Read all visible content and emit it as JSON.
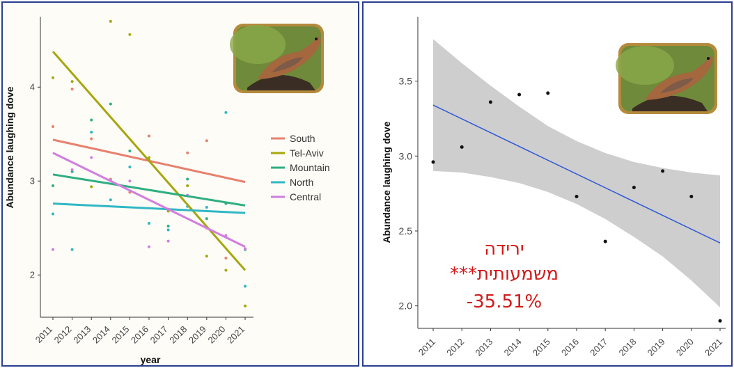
{
  "chart_data": [
    {
      "type": "scatter",
      "xlabel": "year",
      "ylabel": "Abundance laughing dove",
      "x": [
        2011,
        2012,
        2013,
        2014,
        2015,
        2016,
        2017,
        2018,
        2019,
        2020,
        2021
      ],
      "xlim": [
        2011,
        2021
      ],
      "ylim": [
        1.55,
        4.75
      ],
      "yticks": [
        2,
        3,
        4
      ],
      "grid": false,
      "legend": "right",
      "series": [
        {
          "name": "South",
          "color": "#e8806f",
          "trend": [
            3.44,
            2.99
          ],
          "points": [
            [
              2011,
              3.58
            ],
            [
              2012,
              3.98
            ],
            [
              2013,
              3.45
            ],
            [
              2014,
              3.02
            ],
            [
              2015,
              2.88
            ],
            [
              2016,
              3.48
            ],
            [
              2017,
              2.7
            ],
            [
              2018,
              3.3
            ],
            [
              2019,
              3.43
            ],
            [
              2020,
              2.18
            ],
            [
              2021,
              2.28
            ]
          ]
        },
        {
          "name": "Tel-Aviv",
          "color": "#a6a60e",
          "trend": [
            4.38,
            2.05
          ],
          "points": [
            [
              2011,
              4.1
            ],
            [
              2012,
              4.06
            ],
            [
              2013,
              2.94
            ],
            [
              2014,
              4.7
            ],
            [
              2015,
              4.56
            ],
            [
              2016,
              3.25
            ],
            [
              2017,
              2.68
            ],
            [
              2018,
              2.95
            ],
            [
              2019,
              2.2
            ],
            [
              2020,
              2.05
            ],
            [
              2021,
              1.67
            ]
          ]
        },
        {
          "name": "Mountain",
          "color": "#2fae83",
          "trend": [
            3.07,
            2.74
          ],
          "points": [
            [
              2011,
              2.95
            ],
            [
              2012,
              3.1
            ],
            [
              2013,
              3.65
            ],
            [
              2014,
              3.82
            ],
            [
              2015,
              3.32
            ],
            [
              2016,
              3.22
            ],
            [
              2017,
              2.52
            ],
            [
              2018,
              3.02
            ],
            [
              2019,
              2.6
            ],
            [
              2020,
              2.76
            ],
            [
              2021,
              2.27
            ]
          ]
        },
        {
          "name": "North",
          "color": "#2fb7c4",
          "trend": [
            2.76,
            2.66
          ],
          "points": [
            [
              2011,
              2.65
            ],
            [
              2012,
              2.27
            ],
            [
              2013,
              3.52
            ],
            [
              2014,
              2.8
            ],
            [
              2015,
              3.15
            ],
            [
              2016,
              2.55
            ],
            [
              2017,
              2.48
            ],
            [
              2018,
              2.73
            ],
            [
              2019,
              2.72
            ],
            [
              2020,
              3.73
            ],
            [
              2021,
              1.88
            ]
          ]
        },
        {
          "name": "Central",
          "color": "#d07ee0",
          "trend": [
            3.3,
            2.3
          ],
          "points": [
            [
              2011,
              2.27
            ],
            [
              2012,
              3.12
            ],
            [
              2013,
              3.25
            ],
            [
              2014,
              3.01
            ],
            [
              2015,
              3.0
            ],
            [
              2016,
              2.3
            ],
            [
              2017,
              2.36
            ],
            [
              2018,
              2.85
            ],
            [
              2019,
              2.5
            ],
            [
              2020,
              2.42
            ],
            [
              2021,
              2.28
            ]
          ]
        }
      ]
    },
    {
      "type": "scatter",
      "xlabel": "",
      "ylabel": "Abundance laughing dove",
      "x": [
        2011,
        2012,
        2013,
        2014,
        2015,
        2016,
        2017,
        2018,
        2019,
        2020,
        2021
      ],
      "xlim": [
        2011,
        2021
      ],
      "ylim": [
        1.85,
        3.93
      ],
      "yticks": [
        2.0,
        2.5,
        3.0,
        3.5
      ],
      "ytick_labels": [
        "2.0",
        "2.5",
        "3.0",
        "3.5"
      ],
      "grid": false,
      "points": [
        2.96,
        3.06,
        3.36,
        3.41,
        3.42,
        2.73,
        2.43,
        2.79,
        2.9,
        2.73,
        1.9
      ],
      "trend": {
        "color": "#2f57d6",
        "start": 3.34,
        "end": 2.42
      },
      "confidence_band": {
        "color": "#c9c9c9",
        "upper": [
          3.78,
          3.62,
          3.47,
          3.33,
          3.2,
          3.1,
          3.02,
          2.96,
          2.92,
          2.89,
          2.87
        ],
        "lower": [
          2.9,
          2.89,
          2.86,
          2.82,
          2.76,
          2.68,
          2.58,
          2.46,
          2.33,
          2.17,
          1.99
        ]
      },
      "annotation": [
        "ירידה",
        "משמעותית***",
        "-35.51%"
      ],
      "annotation_color": "#d11a1a"
    }
  ]
}
